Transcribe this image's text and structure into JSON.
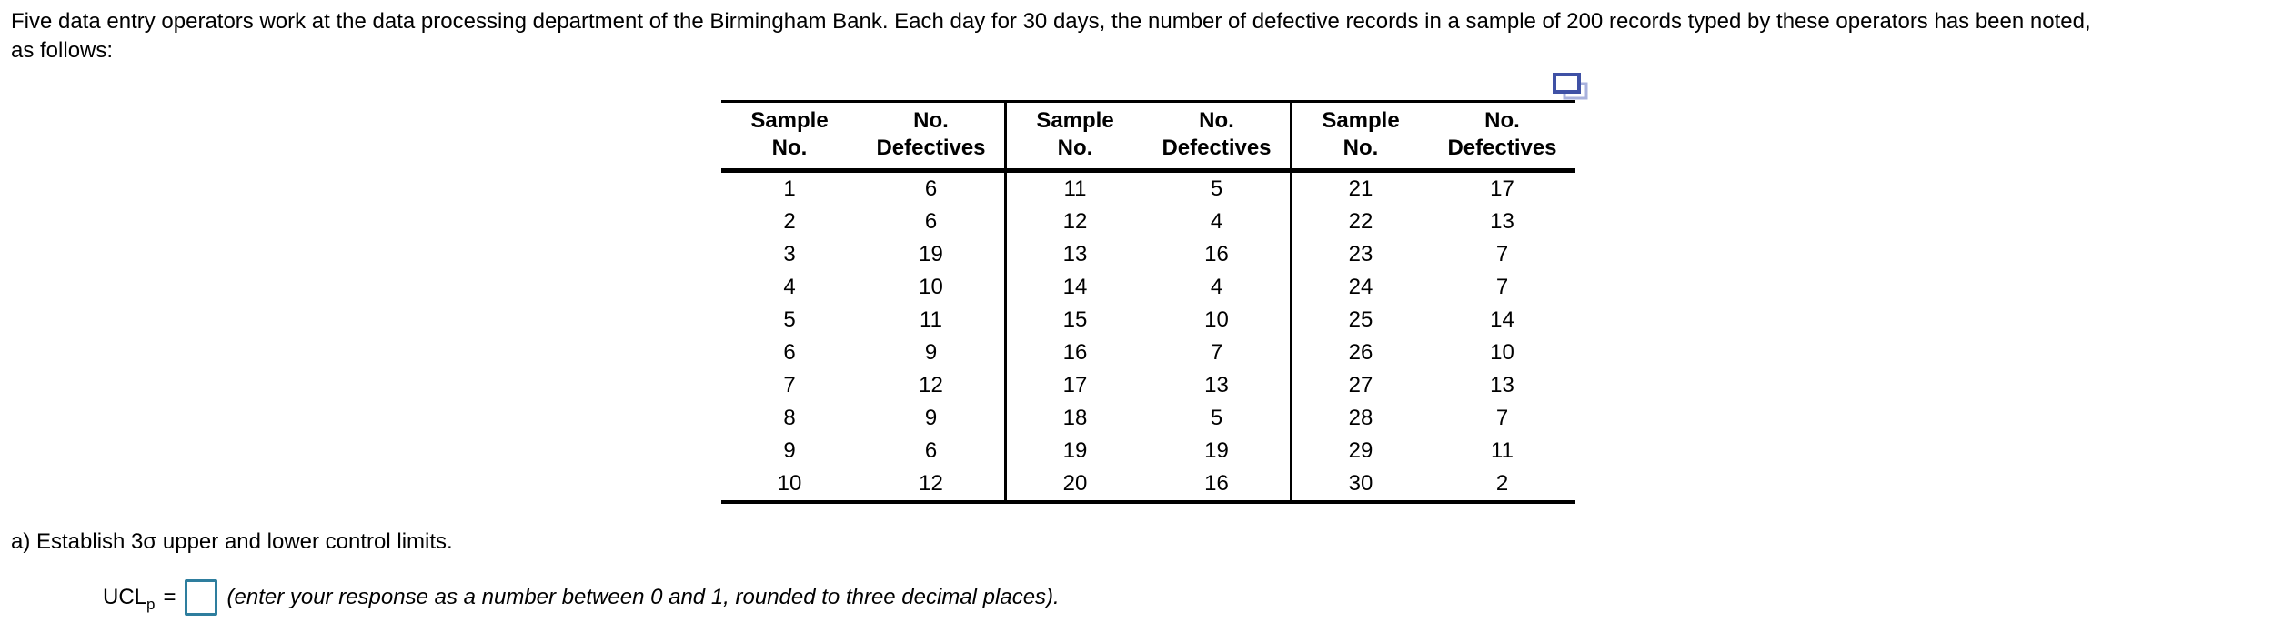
{
  "problem": {
    "line1": "Five data entry operators work at the data processing department of the Birmingham Bank. Each day for 30 days, the number of defective records in a sample of 200 records typed by these operators has been noted,",
    "line2": "as follows:"
  },
  "table": {
    "headers": [
      {
        "line1": "Sample",
        "line2": "No."
      },
      {
        "line1": "No.",
        "line2": "Defectives"
      },
      {
        "line1": "Sample",
        "line2": "No."
      },
      {
        "line1": "No.",
        "line2": "Defectives"
      },
      {
        "line1": "Sample",
        "line2": "No."
      },
      {
        "line1": "No.",
        "line2": "Defectives"
      }
    ],
    "rows": [
      [
        1,
        6,
        11,
        5,
        21,
        17
      ],
      [
        2,
        6,
        12,
        4,
        22,
        13
      ],
      [
        3,
        19,
        13,
        16,
        23,
        7
      ],
      [
        4,
        10,
        14,
        4,
        24,
        7
      ],
      [
        5,
        11,
        15,
        10,
        25,
        14
      ],
      [
        6,
        9,
        16,
        7,
        26,
        10
      ],
      [
        7,
        12,
        17,
        13,
        27,
        13
      ],
      [
        8,
        9,
        18,
        5,
        28,
        7
      ],
      [
        9,
        6,
        19,
        19,
        29,
        11
      ],
      [
        10,
        12,
        20,
        16,
        30,
        2
      ]
    ]
  },
  "part_a": {
    "prompt": "a) Establish 3σ upper and lower control limits.",
    "ucl_label": "UCL",
    "ucl_subscript": "p",
    "equals": "=",
    "input_value": "",
    "instruction": "(enter your response as a number between 0 and 1, rounded to three decimal places)."
  },
  "icons": {
    "copy_table": "copy-table-icon"
  },
  "colors": {
    "input_border": "#2e7e9e",
    "icon_front_stroke": "#3f51a5",
    "icon_back_stroke": "#a9b2dd",
    "text": "#000000",
    "background": "#ffffff"
  }
}
